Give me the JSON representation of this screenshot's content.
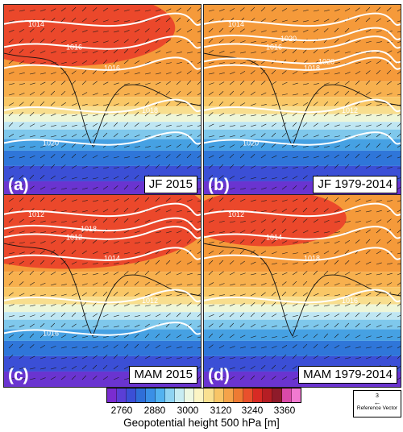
{
  "panels": [
    {
      "label": "(a)",
      "title": "JF 2015",
      "red_extent": 0.34,
      "contours": [
        "1014",
        "1016",
        "1016",
        "1018",
        "1020"
      ]
    },
    {
      "label": "(b)",
      "title": "JF 1979-2014",
      "red_extent": 0.0,
      "contours": [
        "1014",
        "1016",
        "1018",
        "1012",
        "1020",
        "1020",
        "1020"
      ]
    },
    {
      "label": "(c)",
      "title": "MAM 2015",
      "red_extent": 0.45,
      "contours": [
        "1012",
        "1012",
        "1014",
        "1012",
        "1016",
        "1018"
      ]
    },
    {
      "label": "(d)",
      "title": "MAM 1979-2014",
      "red_extent": 0.25,
      "contours": [
        "1012",
        "1014",
        "1018",
        "1016"
      ]
    }
  ],
  "colorbar": {
    "title": "Geopotential height 500 hPa [m]",
    "tick_labels": [
      "2760",
      "2880",
      "3000",
      "3120",
      "3240",
      "3360"
    ],
    "colors": [
      "#7a2cd0",
      "#5a3fd6",
      "#3b4fd6",
      "#2f6ed8",
      "#3a8fe6",
      "#52b2f0",
      "#8fd3f2",
      "#c8ecf2",
      "#eef8e2",
      "#fbf4c4",
      "#f9e091",
      "#f8c567",
      "#f5a34a",
      "#ee7a33",
      "#e9502c",
      "#d82a24",
      "#b51e24",
      "#8e1b2a",
      "#d94aa8",
      "#f27ad1"
    ]
  },
  "reference": {
    "value": "3",
    "arrow": "←",
    "label": "Reference Vector"
  }
}
